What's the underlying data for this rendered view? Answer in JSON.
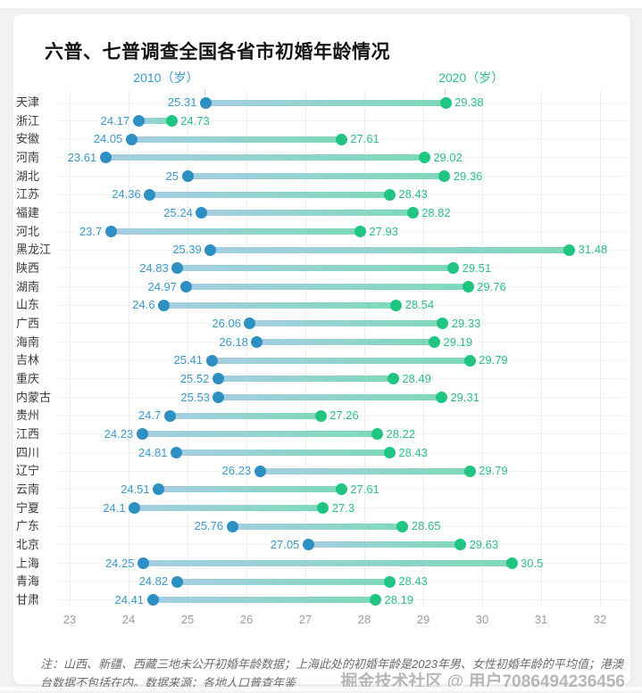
{
  "page": {
    "title": "六普、七普调查全国各省市初婚年龄情况",
    "note": "注：山西、新疆、西藏三地未公开初婚年龄数据；上海此处的初婚年龄是2023年男、女性初婚年龄的平均值；港澳台数据不包括在内。数据来源：各地人口普查年鉴",
    "watermark": "掘金技术社区 @ 用户7086494236456"
  },
  "chart_data": {
    "type": "dumbbell",
    "title": "六普、七普调查全国各省市初婚年龄情况",
    "legend": [
      {
        "label": "2010（岁）",
        "color": "#3a9ac9"
      },
      {
        "label": "2020（岁）",
        "color": "#2cbd8e"
      }
    ],
    "legend_position": "top, above first-row dots",
    "categories": [
      "天津",
      "浙江",
      "安徽",
      "河南",
      "湖北",
      "江苏",
      "福建",
      "河北",
      "黑龙江",
      "陕西",
      "湖南",
      "山东",
      "广西",
      "海南",
      "吉林",
      "重庆",
      "内蒙古",
      "贵州",
      "江西",
      "四川",
      "辽宁",
      "云南",
      "宁夏",
      "广东",
      "北京",
      "上海",
      "青海",
      "甘肃"
    ],
    "series": [
      {
        "name": "2010",
        "values": [
          25.31,
          24.17,
          24.05,
          23.61,
          25,
          24.36,
          25.24,
          23.7,
          25.39,
          24.83,
          24.97,
          24.6,
          26.06,
          26.18,
          25.41,
          25.52,
          25.53,
          24.7,
          24.23,
          24.81,
          26.23,
          24.51,
          24.1,
          25.76,
          27.05,
          24.25,
          24.82,
          24.41
        ]
      },
      {
        "name": "2020",
        "values": [
          29.38,
          24.73,
          27.61,
          29.02,
          29.36,
          28.43,
          28.82,
          27.93,
          31.48,
          29.51,
          29.76,
          28.54,
          29.33,
          29.19,
          29.79,
          28.49,
          29.31,
          27.26,
          28.22,
          28.43,
          29.79,
          27.61,
          27.3,
          28.65,
          29.63,
          30.5,
          28.43,
          28.19
        ]
      }
    ],
    "xlabel": "",
    "ylabel": "",
    "xlim": [
      23,
      32
    ],
    "x_ticks": [
      23,
      24,
      25,
      26,
      27,
      28,
      29,
      30,
      31,
      32
    ],
    "grid": "vertical gridlines at each age tick, faint horizontal row lines",
    "colors": {
      "dot_2010": "#2e8fc2",
      "dot_2020": "#1fc581",
      "label_2010": "#3a9ac9",
      "label_2020": "#2cbd8e",
      "bar_gradient_from": "#a5cee2",
      "bar_gradient_to": "#7fd9ba"
    }
  }
}
